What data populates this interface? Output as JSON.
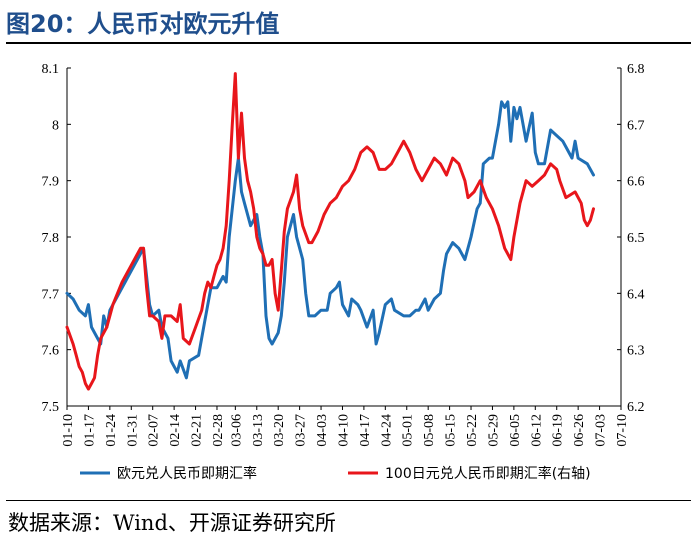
{
  "header": {
    "title": "图20：人民币对欧元升值"
  },
  "footer": {
    "source": "数据来源：Wind、开源证券研究所"
  },
  "chart_data": {
    "type": "line",
    "title": "图20：人民币对欧元升值",
    "x_tick_labels": [
      "01-10",
      "01-17",
      "01-24",
      "01-31",
      "02-07",
      "02-14",
      "02-21",
      "02-28",
      "03-06",
      "03-13",
      "03-20",
      "03-27",
      "04-03",
      "04-10",
      "04-17",
      "04-24",
      "05-01",
      "05-08",
      "05-15",
      "05-22",
      "05-29",
      "06-05",
      "06-12",
      "06-19",
      "06-26",
      "07-03",
      "07-10"
    ],
    "x_days": [
      0,
      7,
      14,
      21,
      28,
      35,
      42,
      49,
      55,
      62,
      69,
      76,
      83,
      90,
      97,
      104,
      111,
      118,
      125,
      132,
      139,
      146,
      153,
      160,
      167,
      174,
      181
    ],
    "x_range": [
      0,
      181
    ],
    "y_left": {
      "range": [
        7.5,
        8.1
      ],
      "ticks": [
        7.5,
        7.6,
        7.7,
        7.8,
        7.9,
        8.0,
        8.1
      ],
      "tick_labels": [
        "7.5",
        "7.6",
        "7.7",
        "7.8",
        "7.9",
        "8",
        "8.1"
      ]
    },
    "y_right": {
      "range": [
        6.2,
        6.8
      ],
      "ticks": [
        6.2,
        6.3,
        6.4,
        6.5,
        6.6,
        6.7,
        6.8
      ],
      "tick_labels": [
        "6.2",
        "6.3",
        "6.4",
        "6.5",
        "6.6",
        "6.7",
        "6.8"
      ]
    },
    "grid": false,
    "legend_position": "bottom",
    "series": [
      {
        "name": "欧元兑人民币即期汇率",
        "axis": "left",
        "color": "#1f6fb5",
        "points": [
          [
            0,
            7.7
          ],
          [
            2,
            7.69
          ],
          [
            4,
            7.67
          ],
          [
            6,
            7.66
          ],
          [
            7,
            7.68
          ],
          [
            8,
            7.64
          ],
          [
            10,
            7.62
          ],
          [
            11,
            7.61
          ],
          [
            12,
            7.66
          ],
          [
            13,
            7.64
          ],
          [
            14,
            7.67
          ],
          [
            18,
            7.71
          ],
          [
            22,
            7.75
          ],
          [
            25,
            7.78
          ],
          [
            26,
            7.73
          ],
          [
            27,
            7.68
          ],
          [
            28,
            7.66
          ],
          [
            30,
            7.67
          ],
          [
            31,
            7.64
          ],
          [
            33,
            7.62
          ],
          [
            34,
            7.58
          ],
          [
            36,
            7.56
          ],
          [
            37,
            7.58
          ],
          [
            39,
            7.55
          ],
          [
            40,
            7.58
          ],
          [
            43,
            7.59
          ],
          [
            45,
            7.65
          ],
          [
            47,
            7.71
          ],
          [
            49,
            7.71
          ],
          [
            51,
            7.73
          ],
          [
            52,
            7.72
          ],
          [
            53,
            7.8
          ],
          [
            55,
            7.9
          ],
          [
            56,
            7.94
          ],
          [
            57,
            7.88
          ],
          [
            58,
            7.86
          ],
          [
            60,
            7.82
          ],
          [
            62,
            7.84
          ],
          [
            63,
            7.8
          ],
          [
            64,
            7.77
          ],
          [
            65,
            7.66
          ],
          [
            66,
            7.62
          ],
          [
            67,
            7.61
          ],
          [
            69,
            7.63
          ],
          [
            70,
            7.66
          ],
          [
            71,
            7.72
          ],
          [
            72,
            7.8
          ],
          [
            74,
            7.84
          ],
          [
            75,
            7.8
          ],
          [
            77,
            7.76
          ],
          [
            78,
            7.7
          ],
          [
            79,
            7.66
          ],
          [
            81,
            7.66
          ],
          [
            83,
            7.67
          ],
          [
            85,
            7.67
          ],
          [
            86,
            7.7
          ],
          [
            88,
            7.71
          ],
          [
            89,
            7.72
          ],
          [
            90,
            7.68
          ],
          [
            92,
            7.66
          ],
          [
            93,
            7.69
          ],
          [
            95,
            7.68
          ],
          [
            96,
            7.67
          ],
          [
            98,
            7.64
          ],
          [
            100,
            7.67
          ],
          [
            101,
            7.61
          ],
          [
            102,
            7.63
          ],
          [
            104,
            7.68
          ],
          [
            106,
            7.69
          ],
          [
            107,
            7.67
          ],
          [
            110,
            7.66
          ],
          [
            112,
            7.66
          ],
          [
            114,
            7.67
          ],
          [
            115,
            7.67
          ],
          [
            117,
            7.69
          ],
          [
            118,
            7.67
          ],
          [
            120,
            7.69
          ],
          [
            122,
            7.7
          ],
          [
            123,
            7.74
          ],
          [
            124,
            7.77
          ],
          [
            126,
            7.79
          ],
          [
            128,
            7.78
          ],
          [
            130,
            7.76
          ],
          [
            132,
            7.8
          ],
          [
            134,
            7.85
          ],
          [
            135,
            7.86
          ],
          [
            136,
            7.93
          ],
          [
            138,
            7.94
          ],
          [
            139,
            7.94
          ],
          [
            141,
            8.0
          ],
          [
            142,
            8.04
          ],
          [
            143,
            8.03
          ],
          [
            144,
            8.04
          ],
          [
            145,
            7.97
          ],
          [
            146,
            8.03
          ],
          [
            147,
            8.01
          ],
          [
            148,
            8.03
          ],
          [
            150,
            7.97
          ],
          [
            152,
            8.02
          ],
          [
            153,
            7.95
          ],
          [
            154,
            7.93
          ],
          [
            156,
            7.93
          ],
          [
            158,
            7.99
          ],
          [
            160,
            7.98
          ],
          [
            162,
            7.97
          ],
          [
            163,
            7.96
          ],
          [
            165,
            7.94
          ],
          [
            166,
            7.97
          ],
          [
            167,
            7.94
          ],
          [
            170,
            7.93
          ],
          [
            172,
            7.91
          ]
        ]
      },
      {
        "name": "100日元兑人民币即期汇率(右轴)",
        "axis": "right",
        "color": "#e8161b",
        "points": [
          [
            0,
            6.34
          ],
          [
            2,
            6.31
          ],
          [
            3,
            6.29
          ],
          [
            4,
            6.27
          ],
          [
            5,
            6.26
          ],
          [
            6,
            6.24
          ],
          [
            7,
            6.23
          ],
          [
            8,
            6.24
          ],
          [
            9,
            6.25
          ],
          [
            10,
            6.29
          ],
          [
            11,
            6.32
          ],
          [
            13,
            6.34
          ],
          [
            15,
            6.38
          ],
          [
            18,
            6.42
          ],
          [
            21,
            6.45
          ],
          [
            24,
            6.48
          ],
          [
            25,
            6.48
          ],
          [
            26,
            6.41
          ],
          [
            27,
            6.36
          ],
          [
            28,
            6.36
          ],
          [
            30,
            6.35
          ],
          [
            31,
            6.32
          ],
          [
            32,
            6.36
          ],
          [
            34,
            6.36
          ],
          [
            36,
            6.35
          ],
          [
            37,
            6.38
          ],
          [
            38,
            6.32
          ],
          [
            40,
            6.31
          ],
          [
            42,
            6.34
          ],
          [
            44,
            6.37
          ],
          [
            45,
            6.4
          ],
          [
            46,
            6.42
          ],
          [
            47,
            6.41
          ],
          [
            48,
            6.43
          ],
          [
            49,
            6.45
          ],
          [
            50,
            6.46
          ],
          [
            51,
            6.48
          ],
          [
            52,
            6.52
          ],
          [
            53,
            6.6
          ],
          [
            54,
            6.7
          ],
          [
            55,
            6.79
          ],
          [
            56,
            6.64
          ],
          [
            57,
            6.72
          ],
          [
            58,
            6.64
          ],
          [
            59,
            6.6
          ],
          [
            60,
            6.58
          ],
          [
            61,
            6.55
          ],
          [
            62,
            6.5
          ],
          [
            63,
            6.48
          ],
          [
            64,
            6.47
          ],
          [
            65,
            6.45
          ],
          [
            66,
            6.45
          ],
          [
            67,
            6.46
          ],
          [
            68,
            6.4
          ],
          [
            69,
            6.37
          ],
          [
            70,
            6.44
          ],
          [
            71,
            6.51
          ],
          [
            72,
            6.55
          ],
          [
            74,
            6.58
          ],
          [
            75,
            6.61
          ],
          [
            76,
            6.55
          ],
          [
            77,
            6.52
          ],
          [
            79,
            6.49
          ],
          [
            80,
            6.49
          ],
          [
            82,
            6.51
          ],
          [
            84,
            6.54
          ],
          [
            86,
            6.56
          ],
          [
            88,
            6.57
          ],
          [
            90,
            6.59
          ],
          [
            92,
            6.6
          ],
          [
            94,
            6.62
          ],
          [
            96,
            6.65
          ],
          [
            98,
            6.66
          ],
          [
            100,
            6.65
          ],
          [
            102,
            6.62
          ],
          [
            104,
            6.62
          ],
          [
            106,
            6.63
          ],
          [
            108,
            6.65
          ],
          [
            110,
            6.67
          ],
          [
            112,
            6.65
          ],
          [
            114,
            6.62
          ],
          [
            116,
            6.6
          ],
          [
            118,
            6.62
          ],
          [
            120,
            6.64
          ],
          [
            122,
            6.63
          ],
          [
            124,
            6.61
          ],
          [
            126,
            6.64
          ],
          [
            128,
            6.63
          ],
          [
            130,
            6.6
          ],
          [
            131,
            6.57
          ],
          [
            133,
            6.58
          ],
          [
            135,
            6.6
          ],
          [
            137,
            6.57
          ],
          [
            139,
            6.55
          ],
          [
            141,
            6.52
          ],
          [
            143,
            6.48
          ],
          [
            145,
            6.46
          ],
          [
            146,
            6.5
          ],
          [
            148,
            6.56
          ],
          [
            150,
            6.6
          ],
          [
            152,
            6.59
          ],
          [
            154,
            6.6
          ],
          [
            156,
            6.61
          ],
          [
            158,
            6.63
          ],
          [
            160,
            6.62
          ],
          [
            161,
            6.6
          ],
          [
            163,
            6.57
          ],
          [
            166,
            6.58
          ],
          [
            168,
            6.56
          ],
          [
            169,
            6.53
          ],
          [
            170,
            6.52
          ],
          [
            171,
            6.53
          ],
          [
            172,
            6.55
          ]
        ]
      }
    ]
  }
}
